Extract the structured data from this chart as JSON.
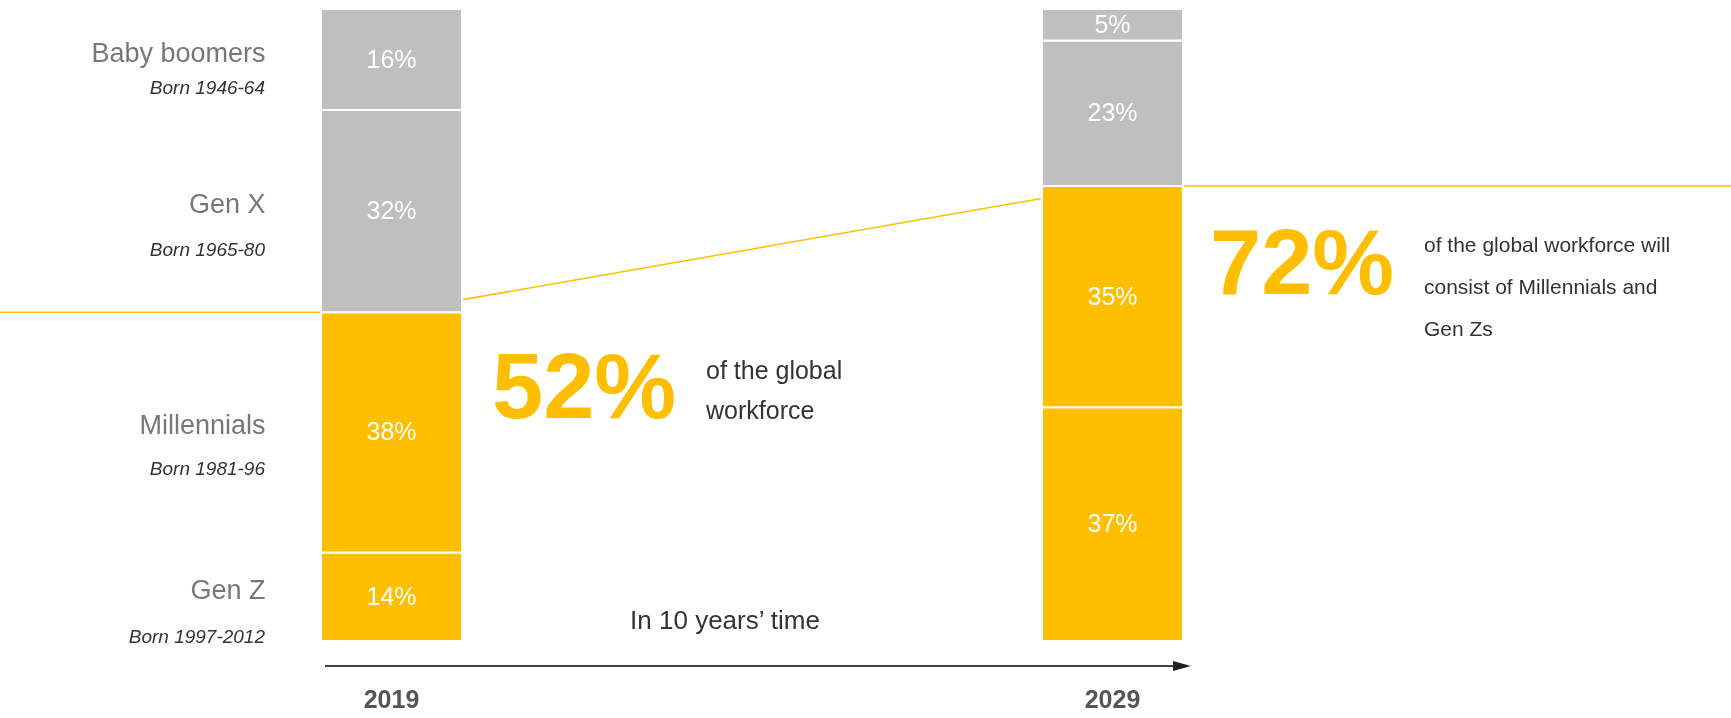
{
  "chart_data": {
    "type": "bar",
    "stacked": true,
    "categories": [
      "2019",
      "2029"
    ],
    "ylim": [
      0,
      100
    ],
    "tick_labels": "x",
    "legend": false,
    "series": [
      {
        "name": "Gen Z",
        "color": "#ffbf00",
        "values": [
          14,
          37
        ],
        "value_labels": [
          "14%",
          "37%"
        ]
      },
      {
        "name": "Millennials",
        "color": "#ffbf00",
        "values": [
          38,
          35
        ],
        "value_labels": [
          "38%",
          "35%"
        ]
      },
      {
        "name": "Gen X",
        "color": "#bfbfbf",
        "values": [
          32,
          23
        ],
        "value_labels": [
          "32%",
          "23%"
        ]
      },
      {
        "name": "Baby boomers",
        "color": "#bfbfbf",
        "values": [
          16,
          5
        ],
        "value_labels": [
          "16%",
          "5%"
        ]
      },
      {
        "type": "line",
        "color": "#ffbf00",
        "values": [
          52,
          72
        ]
      }
    ],
    "annotations": [
      "Born 1997-2012",
      "Born 1981-96",
      "Born 1965-80",
      "Born 1946-64",
      "52%",
      "of the global workforce",
      "72%",
      "of the global workforce will consist of Millennials and Gen Zs",
      "In 10 years’ time"
    ]
  }
}
